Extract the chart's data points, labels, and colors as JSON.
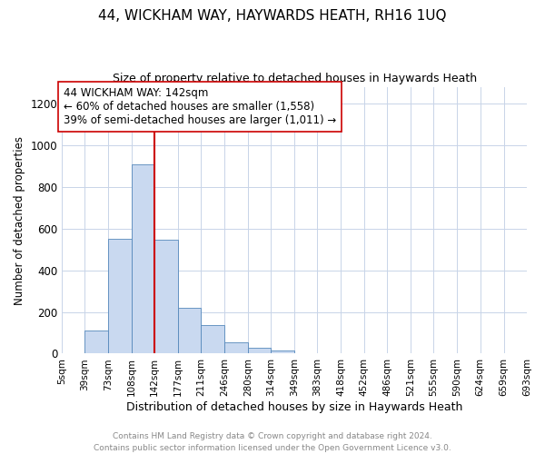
{
  "title": "44, WICKHAM WAY, HAYWARDS HEATH, RH16 1UQ",
  "subtitle": "Size of property relative to detached houses in Haywards Heath",
  "xlabel": "Distribution of detached houses by size in Haywards Heath",
  "ylabel": "Number of detached properties",
  "bin_edges": [
    5,
    39,
    73,
    108,
    142,
    177,
    211,
    246,
    280,
    314,
    349,
    383,
    418,
    452,
    486,
    521,
    555,
    590,
    624,
    659,
    693
  ],
  "bar_heights": [
    0,
    110,
    550,
    910,
    545,
    220,
    135,
    55,
    30,
    15,
    0,
    0,
    0,
    0,
    0,
    0,
    0,
    0,
    0,
    0
  ],
  "bar_color": "#c9d9f0",
  "bar_edge_color": "#5588bb",
  "vline_x": 142,
  "vline_color": "#cc0000",
  "annotation_text": "44 WICKHAM WAY: 142sqm\n← 60% of detached houses are smaller (1,558)\n39% of semi-detached houses are larger (1,011) →",
  "annotation_box_edge": "#cc0000",
  "annotation_fontsize": 8.5,
  "ylim": [
    0,
    1280
  ],
  "yticks": [
    0,
    200,
    400,
    600,
    800,
    1000,
    1200
  ],
  "tick_labels": [
    "5sqm",
    "39sqm",
    "73sqm",
    "108sqm",
    "142sqm",
    "177sqm",
    "211sqm",
    "246sqm",
    "280sqm",
    "314sqm",
    "349sqm",
    "383sqm",
    "418sqm",
    "452sqm",
    "486sqm",
    "521sqm",
    "555sqm",
    "590sqm",
    "624sqm",
    "659sqm",
    "693sqm"
  ],
  "footer_text": "Contains HM Land Registry data © Crown copyright and database right 2024.\nContains public sector information licensed under the Open Government Licence v3.0.",
  "background_color": "#ffffff",
  "grid_color": "#c8d4e8",
  "title_fontsize": 11,
  "subtitle_fontsize": 9,
  "ylabel_fontsize": 8.5,
  "xlabel_fontsize": 9,
  "ytick_fontsize": 8.5,
  "xtick_fontsize": 7.5
}
